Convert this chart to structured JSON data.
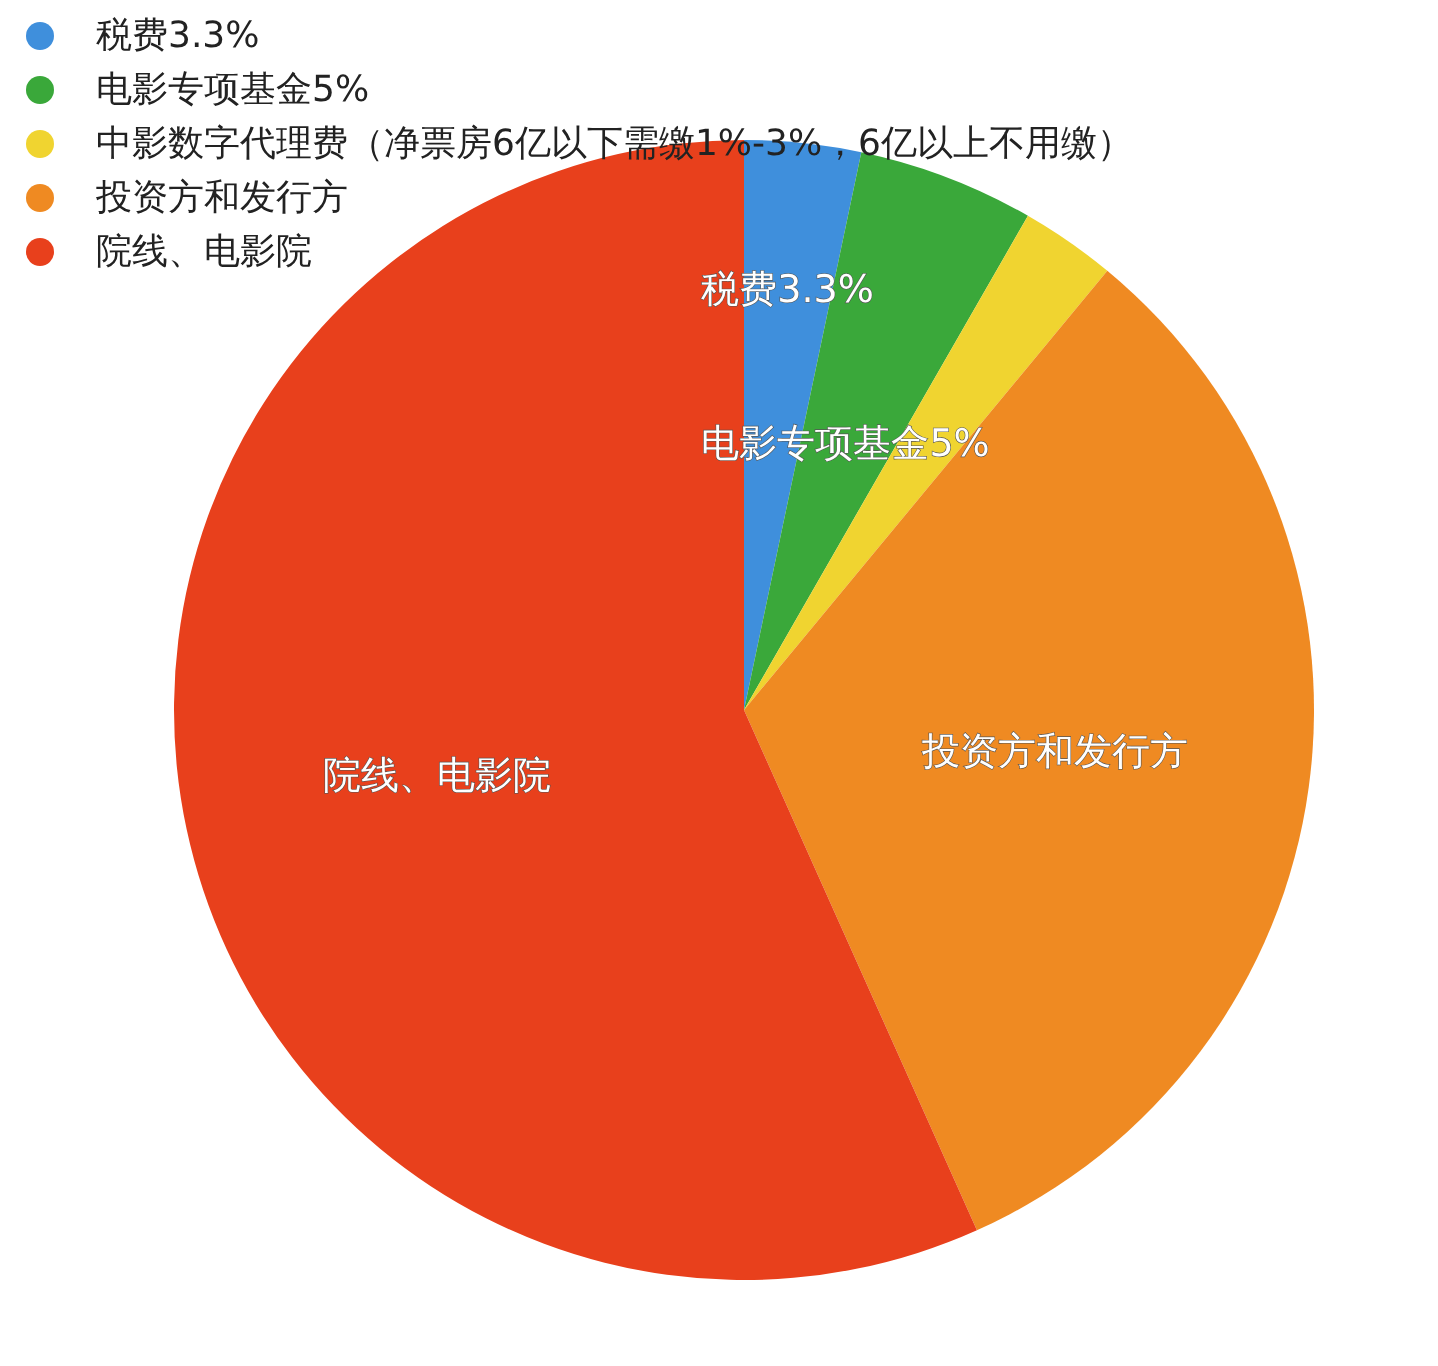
{
  "chart_data": {
    "type": "pie",
    "categories": [
      "税费3.3%",
      "电影专项基金5%",
      "中影数字代理费（净票房6亿以下需缴1%-3%，6亿以上不用缴）",
      "投资方和发行方",
      "院线、电影院"
    ],
    "values": [
      3.3,
      5,
      2.7,
      32.3,
      56.7
    ],
    "colors": [
      "#3f8fdc",
      "#3aa83a",
      "#f0d430",
      "#ef8a22",
      "#e8401c"
    ],
    "value_labels": [
      "税费3.3%",
      "电影专项基金5%",
      null,
      "投资方和发行方",
      "院线、电影院"
    ],
    "legend": "top left"
  }
}
